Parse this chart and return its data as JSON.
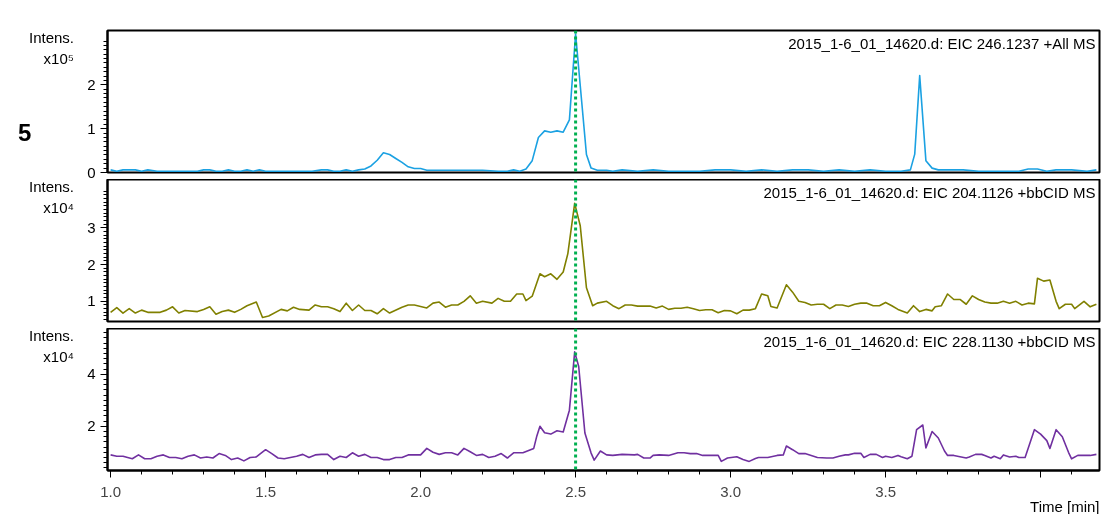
{
  "chart_data": [
    {
      "type": "line",
      "title": "2015_1-6_01_14620.d: EIC 246.1237 +All MS",
      "ylabel": "Intens.\nx10⁵",
      "annotations": [
        "5"
      ],
      "xlim": [
        0.99,
        4.19
      ],
      "ylim": [
        0,
        3.24
      ],
      "yticks": [
        0,
        1,
        2
      ],
      "tick_labels": "y",
      "ref_lines": [
        {
          "axis": "x",
          "value": 2.5,
          "color": "#00b050",
          "line_style": "dotted"
        }
      ],
      "series": [
        {
          "color": "#1ba1e2",
          "x": [
            1.0,
            1.02,
            1.04,
            1.06,
            1.08,
            1.1,
            1.12,
            1.15,
            1.2,
            1.25,
            1.28,
            1.3,
            1.32,
            1.34,
            1.36,
            1.38,
            1.4,
            1.42,
            1.44,
            1.46,
            1.48,
            1.5,
            1.55,
            1.6,
            1.65,
            1.68,
            1.7,
            1.72,
            1.74,
            1.76,
            1.78,
            1.8,
            1.82,
            1.84,
            1.86,
            1.88,
            1.9,
            1.92,
            1.94,
            1.96,
            1.98,
            2.0,
            2.02,
            2.04,
            2.1,
            2.2,
            2.25,
            2.28,
            2.3,
            2.32,
            2.34,
            2.36,
            2.38,
            2.4,
            2.42,
            2.44,
            2.46,
            2.48,
            2.5,
            2.535,
            2.55,
            2.57,
            2.6,
            2.62,
            2.65,
            2.7,
            2.75,
            2.8,
            2.85,
            2.9,
            2.95,
            3.0,
            3.05,
            3.1,
            3.15,
            3.2,
            3.25,
            3.3,
            3.35,
            3.4,
            3.45,
            3.5,
            3.55,
            3.58,
            3.594,
            3.61,
            3.63,
            3.65,
            3.67,
            3.7,
            3.75,
            3.8,
            3.85,
            3.9,
            3.93,
            3.96,
            3.99,
            4.02,
            4.05,
            4.1,
            4.15,
            4.18
          ],
          "values": [
            0.06,
            0.03,
            0.06,
            0.06,
            0.06,
            0.03,
            0.06,
            0.03,
            0.03,
            0.03,
            0.03,
            0.06,
            0.06,
            0.03,
            0.03,
            0.06,
            0.03,
            0.03,
            0.06,
            0.03,
            0.06,
            0.03,
            0.03,
            0.03,
            0.03,
            0.06,
            0.06,
            0.03,
            0.03,
            0.06,
            0.03,
            0.06,
            0.08,
            0.15,
            0.28,
            0.45,
            0.41,
            0.32,
            0.23,
            0.13,
            0.09,
            0.09,
            0.05,
            0.05,
            0.05,
            0.05,
            0.03,
            0.03,
            0.06,
            0.03,
            0.08,
            0.27,
            0.8,
            0.95,
            0.92,
            0.95,
            0.92,
            1.2,
            3.16,
            0.41,
            0.1,
            0.05,
            0.05,
            0.03,
            0.06,
            0.03,
            0.06,
            0.03,
            0.03,
            0.03,
            0.06,
            0.06,
            0.03,
            0.06,
            0.03,
            0.06,
            0.06,
            0.03,
            0.06,
            0.03,
            0.06,
            0.03,
            0.03,
            0.06,
            0.42,
            2.21,
            0.27,
            0.1,
            0.06,
            0.06,
            0.06,
            0.03,
            0.03,
            0.03,
            0.03,
            0.08,
            0.08,
            0.03,
            0.06,
            0.06,
            0.03,
            0.06
          ]
        }
      ]
    },
    {
      "type": "line",
      "title": "2015_1-6_01_14620.d: EIC 204.1126 +bbCID MS",
      "ylabel": "Intens.\nx10⁴",
      "xlim": [
        0.99,
        4.19
      ],
      "ylim": [
        0.45,
        4.32
      ],
      "yticks": [
        1,
        2,
        3
      ],
      "tick_labels": "y",
      "ref_lines": [
        {
          "axis": "x",
          "value": 2.5,
          "color": "#00b050",
          "line_style": "dotted"
        }
      ],
      "series": [
        {
          "color": "#808000",
          "x": [
            1.0,
            1.02,
            1.04,
            1.06,
            1.08,
            1.1,
            1.12,
            1.16,
            1.18,
            1.2,
            1.22,
            1.24,
            1.28,
            1.3,
            1.32,
            1.34,
            1.36,
            1.38,
            1.4,
            1.42,
            1.44,
            1.47,
            1.49,
            1.51,
            1.55,
            1.57,
            1.59,
            1.61,
            1.64,
            1.66,
            1.68,
            1.7,
            1.72,
            1.74,
            1.76,
            1.78,
            1.8,
            1.82,
            1.84,
            1.86,
            1.88,
            1.9,
            1.94,
            1.96,
            1.98,
            2.02,
            2.04,
            2.06,
            2.08,
            2.1,
            2.12,
            2.14,
            2.16,
            2.18,
            2.2,
            2.23,
            2.25,
            2.27,
            2.29,
            2.31,
            2.33,
            2.34,
            2.36,
            2.385,
            2.4,
            2.42,
            2.44,
            2.46,
            2.475,
            2.497,
            2.515,
            2.535,
            2.555,
            2.57,
            2.6,
            2.62,
            2.64,
            2.66,
            2.68,
            2.7,
            2.72,
            2.74,
            2.76,
            2.78,
            2.8,
            2.82,
            2.84,
            2.86,
            2.88,
            2.9,
            2.92,
            2.94,
            2.96,
            2.98,
            3.0,
            3.02,
            3.04,
            3.06,
            3.08,
            3.1,
            3.12,
            3.13,
            3.15,
            3.18,
            3.2,
            3.22,
            3.24,
            3.26,
            3.28,
            3.3,
            3.32,
            3.34,
            3.36,
            3.38,
            3.4,
            3.42,
            3.44,
            3.46,
            3.48,
            3.5,
            3.52,
            3.54,
            3.57,
            3.59,
            3.61,
            3.63,
            3.65,
            3.66,
            3.68,
            3.7,
            3.72,
            3.74,
            3.76,
            3.78,
            3.8,
            3.82,
            3.84,
            3.86,
            3.88,
            3.9,
            3.92,
            3.94,
            3.96,
            3.98,
            3.99,
            4.01,
            4.03,
            4.05,
            4.06,
            4.08,
            4.1,
            4.11,
            4.14,
            4.16,
            4.18
          ],
          "values": [
            0.7,
            0.83,
            0.68,
            0.8,
            0.68,
            0.76,
            0.7,
            0.7,
            0.76,
            0.85,
            0.68,
            0.75,
            0.72,
            0.78,
            0.85,
            0.65,
            0.72,
            0.76,
            0.7,
            0.78,
            0.88,
            0.98,
            0.56,
            0.6,
            0.78,
            0.74,
            0.84,
            0.78,
            0.76,
            0.9,
            0.85,
            0.85,
            0.8,
            0.72,
            0.95,
            0.75,
            0.9,
            0.75,
            0.75,
            0.66,
            0.8,
            0.68,
            0.84,
            0.9,
            0.9,
            0.82,
            0.95,
            0.98,
            0.84,
            0.9,
            0.9,
            1.0,
            1.15,
            0.95,
            1.0,
            0.95,
            1.08,
            1.0,
            1.0,
            1.2,
            1.2,
            1.02,
            1.14,
            1.75,
            1.67,
            1.75,
            1.6,
            1.8,
            2.3,
            3.67,
            3.06,
            1.37,
            0.88,
            0.95,
            1.0,
            0.88,
            0.8,
            0.9,
            0.9,
            0.87,
            0.87,
            0.87,
            0.82,
            0.87,
            0.78,
            0.81,
            0.81,
            0.84,
            0.8,
            0.75,
            0.77,
            0.77,
            0.69,
            0.75,
            0.74,
            0.66,
            0.76,
            0.76,
            0.8,
            1.2,
            1.15,
            0.86,
            0.82,
            1.45,
            1.25,
            1.0,
            0.97,
            0.9,
            0.92,
            0.92,
            0.8,
            0.9,
            0.9,
            0.86,
            0.92,
            0.95,
            0.95,
            0.88,
            0.88,
            0.97,
            0.88,
            0.78,
            0.68,
            0.88,
            0.72,
            0.78,
            0.74,
            0.85,
            0.88,
            1.2,
            1.05,
            1.05,
            0.92,
            1.15,
            1.05,
            0.98,
            0.95,
            0.95,
            1.0,
            0.95,
            1.0,
            0.9,
            0.95,
            0.93,
            1.63,
            1.55,
            1.58,
            1.0,
            0.8,
            0.92,
            0.92,
            0.8,
            1.0,
            0.85,
            0.92
          ]
        }
      ]
    },
    {
      "type": "line",
      "title": "2015_1-6_01_14620.d: EIC 228.1130 +bbCID MS",
      "ylabel": "Intens.\nx10⁴",
      "xlabel": "Time [min]",
      "xlim": [
        0.99,
        4.19
      ],
      "ylim": [
        0.3,
        5.76
      ],
      "yticks": [
        2,
        4
      ],
      "xticks": [
        {
          "value": 1.0,
          "label": "1.0"
        },
        1.5,
        {
          "value": 2.0,
          "label": "2.0"
        },
        2.5,
        {
          "value": 3.0,
          "label": "3.0"
        },
        3.5,
        {
          "value": 4.0,
          "label": null
        }
      ],
      "ref_lines": [
        {
          "axis": "x",
          "value": 2.5,
          "color": "#00b050",
          "line_style": "dotted"
        }
      ],
      "series": [
        {
          "color": "#7030a0",
          "x": [
            1.0,
            1.02,
            1.04,
            1.07,
            1.09,
            1.11,
            1.13,
            1.15,
            1.17,
            1.19,
            1.21,
            1.23,
            1.25,
            1.27,
            1.29,
            1.31,
            1.33,
            1.35,
            1.37,
            1.39,
            1.41,
            1.43,
            1.45,
            1.47,
            1.5,
            1.52,
            1.54,
            1.56,
            1.6,
            1.62,
            1.64,
            1.66,
            1.68,
            1.7,
            1.72,
            1.74,
            1.76,
            1.78,
            1.8,
            1.82,
            1.84,
            1.86,
            1.88,
            1.9,
            1.92,
            1.94,
            1.96,
            1.98,
            2.0,
            2.02,
            2.04,
            2.06,
            2.08,
            2.1,
            2.12,
            2.14,
            2.16,
            2.18,
            2.2,
            2.22,
            2.24,
            2.26,
            2.28,
            2.3,
            2.33,
            2.365,
            2.375,
            2.385,
            2.4,
            2.42,
            2.44,
            2.46,
            2.48,
            2.497,
            2.51,
            2.53,
            2.55,
            2.56,
            2.58,
            2.6,
            2.62,
            2.65,
            2.69,
            2.7,
            2.72,
            2.74,
            2.75,
            2.77,
            2.8,
            2.83,
            2.85,
            2.87,
            2.89,
            2.91,
            2.96,
            2.97,
            2.99,
            3.02,
            3.04,
            3.06,
            3.08,
            3.09,
            3.12,
            3.15,
            3.17,
            3.18,
            3.2,
            3.22,
            3.24,
            3.27,
            3.28,
            3.31,
            3.33,
            3.35,
            3.37,
            3.38,
            3.4,
            3.42,
            3.43,
            3.45,
            3.47,
            3.49,
            3.5,
            3.52,
            3.54,
            3.55,
            3.57,
            3.585,
            3.6,
            3.62,
            3.63,
            3.65,
            3.67,
            3.69,
            3.7,
            3.72,
            3.76,
            3.77,
            3.79,
            3.81,
            3.82,
            3.84,
            3.85,
            3.87,
            3.88,
            3.9,
            3.92,
            3.93,
            3.95,
            3.98,
            4.0,
            4.02,
            4.03,
            4.05,
            4.07,
            4.09,
            4.1,
            4.12,
            4.14,
            4.16,
            4.18
          ],
          "values": [
            0.9,
            0.85,
            0.85,
            0.75,
            0.9,
            0.75,
            0.75,
            0.85,
            0.9,
            0.8,
            0.8,
            0.75,
            0.85,
            0.9,
            0.78,
            0.82,
            0.78,
            0.95,
            0.88,
            0.72,
            0.78,
            0.67,
            0.8,
            0.82,
            1.1,
            0.95,
            0.78,
            0.75,
            0.85,
            0.92,
            0.8,
            0.9,
            0.92,
            0.92,
            0.72,
            0.85,
            0.8,
            0.98,
            0.85,
            0.92,
            0.8,
            0.8,
            0.72,
            0.72,
            0.8,
            0.8,
            0.9,
            0.9,
            0.9,
            1.15,
            1.0,
            0.92,
            0.98,
            0.98,
            0.9,
            1.15,
            1.02,
            0.88,
            0.92,
            0.8,
            0.85,
            0.95,
            0.78,
            0.98,
            0.98,
            1.15,
            1.63,
            2.0,
            1.75,
            1.7,
            1.83,
            1.78,
            2.62,
            4.86,
            4.3,
            1.74,
            0.97,
            0.7,
            1.05,
            0.9,
            0.88,
            0.92,
            0.9,
            0.92,
            0.78,
            0.78,
            0.88,
            0.9,
            0.88,
            0.98,
            0.98,
            0.95,
            0.95,
            0.88,
            0.88,
            0.65,
            0.78,
            0.83,
            0.72,
            0.65,
            0.76,
            0.8,
            0.8,
            0.88,
            0.9,
            1.24,
            1.1,
            0.95,
            0.95,
            0.84,
            0.8,
            0.78,
            0.78,
            0.85,
            0.9,
            0.9,
            0.96,
            0.96,
            0.8,
            0.92,
            0.92,
            0.8,
            0.85,
            0.8,
            0.88,
            0.83,
            0.75,
            0.85,
            1.87,
            2.05,
            1.17,
            1.8,
            1.55,
            1.05,
            0.88,
            0.88,
            0.78,
            0.82,
            0.92,
            0.92,
            0.88,
            0.78,
            0.85,
            0.75,
            0.9,
            0.82,
            0.85,
            0.8,
            0.8,
            1.87,
            1.7,
            1.45,
            1.15,
            1.87,
            1.6,
            1.0,
            0.75,
            0.88,
            0.88,
            0.88,
            0.92
          ]
        }
      ]
    }
  ]
}
